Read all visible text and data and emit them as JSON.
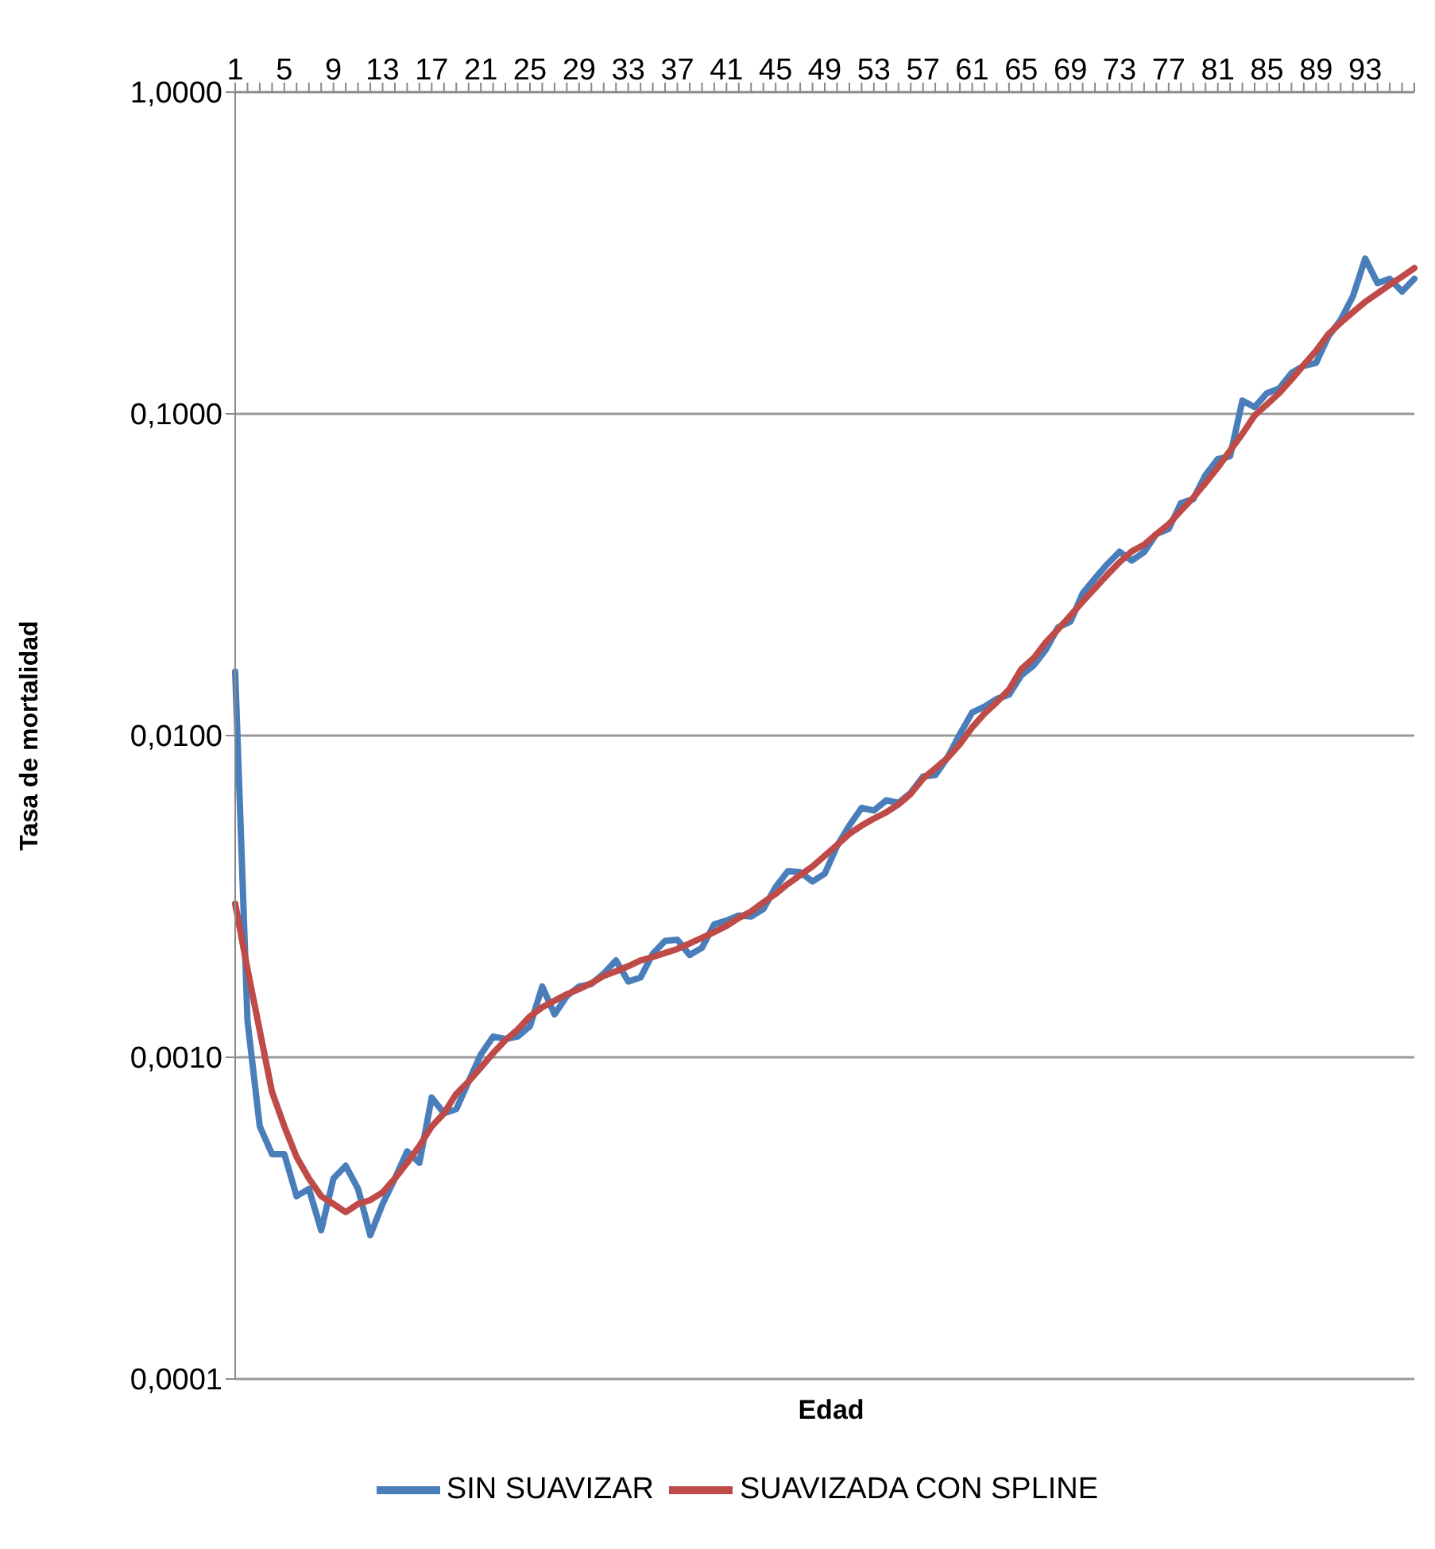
{
  "chart_data": {
    "type": "line",
    "xlabel": "Edad",
    "ylabel": "Tasa de mortalidad",
    "categories": [
      "1",
      null,
      null,
      null,
      "5",
      null,
      null,
      null,
      "9",
      null,
      null,
      null,
      "13",
      null,
      null,
      null,
      "17",
      null,
      null,
      null,
      "21",
      null,
      null,
      null,
      "25",
      null,
      null,
      null,
      "29",
      null,
      null,
      null,
      "33",
      null,
      null,
      null,
      "37",
      null,
      null,
      null,
      "41",
      null,
      null,
      null,
      "45",
      null,
      null,
      null,
      "49",
      null,
      null,
      null,
      "53",
      null,
      null,
      null,
      "57",
      null,
      null,
      null,
      "61",
      null,
      null,
      null,
      "65",
      null,
      null,
      null,
      "69",
      null,
      null,
      null,
      "73",
      null,
      null,
      null,
      "77",
      null,
      null,
      null,
      "81",
      null,
      null,
      null,
      "85",
      null,
      null,
      null,
      "89",
      null,
      null,
      null,
      "93",
      null,
      null,
      null,
      null
    ],
    "series": [
      {
        "name": "SIN SUAVIZAR",
        "color": "#4a7ebb",
        "values": [
          0.0158,
          0.0013,
          0.00061,
          0.0005,
          0.0005,
          0.00037,
          0.00039,
          0.00029,
          0.00042,
          0.00046,
          0.00039,
          0.00028,
          0.00035,
          0.00042,
          0.00051,
          0.00047,
          0.00075,
          0.00067,
          0.00069,
          0.00084,
          0.00102,
          0.00116,
          0.00114,
          0.00116,
          0.00125,
          0.00166,
          0.00136,
          0.00155,
          0.00166,
          0.00169,
          0.00182,
          0.002,
          0.00172,
          0.00177,
          0.0021,
          0.0023,
          0.00232,
          0.00208,
          0.00219,
          0.00259,
          0.00266,
          0.00276,
          0.00274,
          0.00289,
          0.00338,
          0.00379,
          0.00376,
          0.00352,
          0.00372,
          0.00454,
          0.00525,
          0.00596,
          0.00585,
          0.00629,
          0.00618,
          0.00664,
          0.00746,
          0.00754,
          0.00856,
          0.0101,
          0.0118,
          0.0123,
          0.013,
          0.0134,
          0.0154,
          0.0165,
          0.0185,
          0.0217,
          0.0226,
          0.0277,
          0.0308,
          0.0341,
          0.0373,
          0.035,
          0.0372,
          0.0423,
          0.0439,
          0.0528,
          0.0543,
          0.0646,
          0.0724,
          0.0738,
          0.11,
          0.105,
          0.116,
          0.12,
          0.134,
          0.141,
          0.144,
          0.174,
          0.196,
          0.232,
          0.304,
          0.255,
          0.263,
          0.24,
          0.263
        ]
      },
      {
        "name": "SUAVIZADA CON SPLINE",
        "color": "#be4b48",
        "values": [
          0.003,
          0.00188,
          0.00121,
          0.00078,
          0.00061,
          0.00049,
          0.00042,
          0.00037,
          0.00035,
          0.00033,
          0.00035,
          0.00036,
          0.00038,
          0.00042,
          0.00047,
          0.00053,
          0.00061,
          0.00067,
          0.00077,
          0.00084,
          0.00093,
          0.00103,
          0.00113,
          0.00122,
          0.00134,
          0.00143,
          0.0015,
          0.00157,
          0.00163,
          0.0017,
          0.00179,
          0.00185,
          0.00192,
          0.002,
          0.00205,
          0.00211,
          0.00217,
          0.00226,
          0.00235,
          0.00245,
          0.00256,
          0.00271,
          0.00284,
          0.00303,
          0.00322,
          0.00346,
          0.00368,
          0.00392,
          0.00423,
          0.00457,
          0.00495,
          0.00525,
          0.00552,
          0.00577,
          0.00611,
          0.00659,
          0.00735,
          0.00791,
          0.00853,
          0.0094,
          0.0106,
          0.0117,
          0.0127,
          0.0139,
          0.0161,
          0.0174,
          0.0195,
          0.0214,
          0.0236,
          0.0261,
          0.0287,
          0.0316,
          0.0346,
          0.0374,
          0.0392,
          0.0423,
          0.0454,
          0.05,
          0.0549,
          0.061,
          0.0681,
          0.0769,
          0.0867,
          0.0989,
          0.107,
          0.116,
          0.128,
          0.142,
          0.157,
          0.177,
          0.192,
          0.207,
          0.223,
          0.237,
          0.252,
          0.267,
          0.284
        ]
      }
    ],
    "log": "y",
    "ylim": [
      0.0001,
      1
    ],
    "yticks": [
      {
        "value": 0.0001,
        "label": "0,0001"
      },
      {
        "value": 0.001,
        "label": "0,0010"
      },
      {
        "value": 0.01,
        "label": "0,0100"
      },
      {
        "value": 0.1,
        "label": "0,1000"
      },
      {
        "value": 1,
        "label": "1,0000"
      }
    ],
    "grid": "y",
    "legend": "bottom",
    "marker": "none",
    "line_style": "solid"
  }
}
